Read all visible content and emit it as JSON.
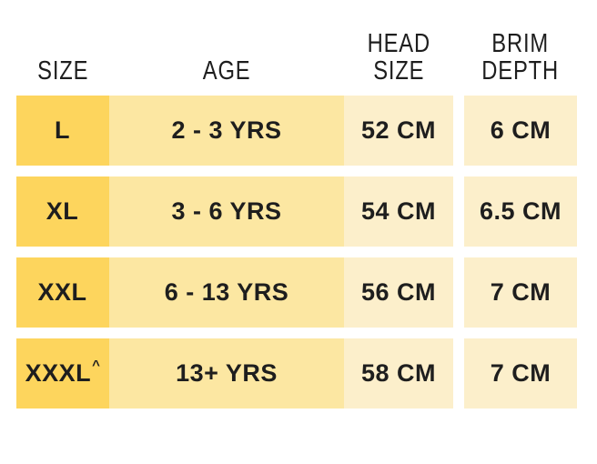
{
  "colors": {
    "size_col": "#FDD55D",
    "age_col": "#FCE7A2",
    "measure_col": "#FCEFCB",
    "text": "#1E1E1E",
    "background": "#FFFFFF"
  },
  "table": {
    "headers": {
      "size": "SIZE",
      "age": "AGE",
      "head_line1": "HEAD",
      "head_line2": "SIZE",
      "brim_line1": "BRIM",
      "brim_line2": "DEPTH"
    },
    "rows": [
      {
        "size": "L",
        "size_sup": "",
        "age": "2 - 3 YRS",
        "head_size": "52 CM",
        "brim_depth": "6 CM"
      },
      {
        "size": "XL",
        "size_sup": "",
        "age": "3 - 6 YRS",
        "head_size": "54 CM",
        "brim_depth": "6.5 CM"
      },
      {
        "size": "XXL",
        "size_sup": "",
        "age": "6 - 13 YRS",
        "head_size": "56 CM",
        "brim_depth": "7 CM"
      },
      {
        "size": "XXXL",
        "size_sup": "^",
        "age": "13+ YRS",
        "head_size": "58 CM",
        "brim_depth": "7 CM"
      }
    ]
  },
  "chart_data": {
    "type": "table",
    "title": "",
    "columns": [
      "SIZE",
      "AGE",
      "HEAD SIZE",
      "BRIM DEPTH"
    ],
    "rows": [
      [
        "L",
        "2 - 3 YRS",
        "52 CM",
        "6 CM"
      ],
      [
        "XL",
        "3 - 6 YRS",
        "54 CM",
        "6.5 CM"
      ],
      [
        "XXL",
        "6 - 13 YRS",
        "56 CM",
        "7 CM"
      ],
      [
        "XXXL^",
        "13+ YRS",
        "58 CM",
        "7 CM"
      ]
    ]
  }
}
